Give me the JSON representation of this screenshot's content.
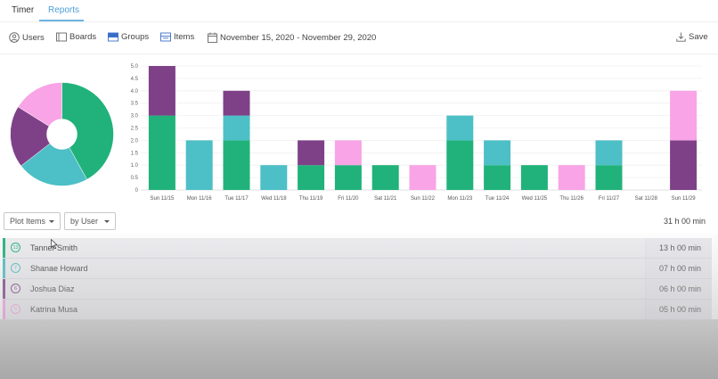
{
  "tabs": [
    {
      "label": "Timer",
      "active": false
    },
    {
      "label": "Reports",
      "active": true
    }
  ],
  "toolbar": {
    "users_label": "Users",
    "boards_label": "Boards",
    "groups_label": "Groups",
    "items_label": "Items",
    "date_range": "November 15, 2020 - November 29, 2020",
    "save_label": "Save"
  },
  "colors": {
    "tanner": "#20b27a",
    "shanae": "#4dbfc6",
    "joshua": "#7e4188",
    "katrina": "#f8a4e6",
    "accent": "#4a9fd8"
  },
  "controls": {
    "plot_dropdown": "Plot Items",
    "group_dropdown": "by User",
    "total": "31 h 00 min"
  },
  "users": [
    {
      "name": "Tanner Smith",
      "count": "13",
      "hours": "13 h 00 min",
      "color": "#20b27a"
    },
    {
      "name": "Shanae Howard",
      "count": "7",
      "hours": "07 h 00 min",
      "color": "#4dbfc6"
    },
    {
      "name": "Joshua Diaz",
      "count": "6",
      "hours": "06 h 00 min",
      "color": "#7e4188"
    },
    {
      "name": "Katrina Musa",
      "count": "5",
      "hours": "05 h 00 min",
      "color": "#f8a4e6"
    }
  ],
  "chart_data": [
    {
      "type": "pie",
      "title": "",
      "donut": true,
      "labels": [
        "Tanner Smith",
        "Shanae Howard",
        "Joshua Diaz",
        "Katrina Musa"
      ],
      "values": [
        13,
        7,
        6,
        5
      ],
      "colors": [
        "#20b27a",
        "#4dbfc6",
        "#7e4188",
        "#f8a4e6"
      ]
    },
    {
      "type": "bar",
      "stacked": true,
      "title": "",
      "xlabel": "",
      "ylabel": "",
      "ylim": [
        0,
        5
      ],
      "yticks": [
        "0",
        "0.5",
        "1.0",
        "1.5",
        "2.0",
        "2.5",
        "3.0",
        "3.5",
        "4.0",
        "4.5",
        "5.0"
      ],
      "grid": true,
      "categories": [
        "Sun 11/15",
        "Mon 11/16",
        "Tue 11/17",
        "Wed 11/18",
        "Thu 11/19",
        "Fri 11/20",
        "Sat 11/21",
        "Sun 11/22",
        "Mon 11/23",
        "Tue 11/24",
        "Wed 11/25",
        "Thu 11/26",
        "Fri 11/27",
        "Sat 11/28",
        "Sun 11/29"
      ],
      "series": [
        {
          "name": "Tanner Smith",
          "color": "#20b27a",
          "values": [
            3,
            0,
            2,
            0,
            1,
            1,
            1,
            0,
            2,
            1,
            1,
            0,
            1,
            0,
            0
          ]
        },
        {
          "name": "Shanae Howard",
          "color": "#4dbfc6",
          "values": [
            0,
            2,
            1,
            1,
            0,
            0,
            0,
            0,
            1,
            1,
            0,
            0,
            1,
            0,
            0
          ]
        },
        {
          "name": "Joshua Diaz",
          "color": "#7e4188",
          "values": [
            2,
            0,
            1,
            0,
            1,
            0,
            0,
            0,
            0,
            0,
            0,
            0,
            0,
            0,
            2
          ]
        },
        {
          "name": "Katrina Musa",
          "color": "#f8a4e6",
          "values": [
            0,
            0,
            0,
            0,
            0,
            1,
            0,
            1,
            0,
            0,
            0,
            1,
            0,
            0,
            2
          ]
        }
      ]
    }
  ]
}
